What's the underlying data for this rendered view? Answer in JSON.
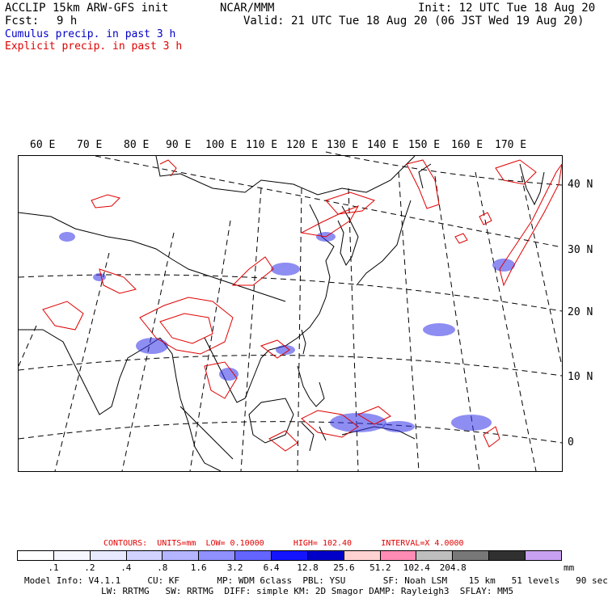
{
  "header": {
    "left1": "ACCLIP 15km ARW-GFS init",
    "center1": "NCAR/MMM",
    "right1": "Init: 12 UTC Tue 18 Aug 20",
    "fcst_label": "Fcst:",
    "fcst_value": "9 h",
    "valid": "Valid: 21 UTC Tue 18 Aug 20 (06 JST Wed 19 Aug 20)",
    "legend_cumulus": "Cumulus precip. in past 3 h",
    "legend_explicit": "Explicit precip. in past 3 h"
  },
  "map": {
    "lon_labels": [
      "60 E",
      "70 E",
      "80 E",
      "90 E",
      "100 E",
      "110 E",
      "120 E",
      "130 E",
      "140 E",
      "150 E",
      "160 E",
      "170 E"
    ],
    "lat_labels": [
      "40 N",
      "30 N",
      "20 N",
      "10 N",
      "0"
    ],
    "colors": {
      "cumulus": "#1010e0",
      "explicit": "#e00000",
      "coast": "#000000",
      "grid": "#000000"
    }
  },
  "contours": {
    "label": "CONTOURS:",
    "units": "UNITS=mm",
    "low": "LOW= 0.10000",
    "high": "HIGH= 102.40",
    "interval": "INTERVAL=X 4.0000"
  },
  "scale": {
    "colors": [
      "#ffffff",
      "#f6f6ff",
      "#e8e8ff",
      "#d2d2ff",
      "#b4b4ff",
      "#9090ff",
      "#6464ff",
      "#1414ff",
      "#0000c8",
      "#ffd2d2",
      "#ff8cb4",
      "#bebebe",
      "#787878",
      "#303030",
      "#c8a0f0"
    ],
    "labels": [
      ".1",
      ".2",
      ".4",
      ".8",
      "1.6",
      "3.2",
      "6.4",
      "12.8",
      "25.6",
      "51.2",
      "102.4",
      "204.8"
    ],
    "unit": "mm"
  },
  "footer": {
    "line1": "Model Info: V4.1.1     CU: KF       MP: WDM 6class  PBL: YSU       SF: Noah LSM    15 km   51 levels   90 sec",
    "line2": "LW: RRTMG   SW: RRTMG  DIFF: simple KM: 2D Smagor DAMP: Rayleigh3  SFLAY: MM5"
  }
}
